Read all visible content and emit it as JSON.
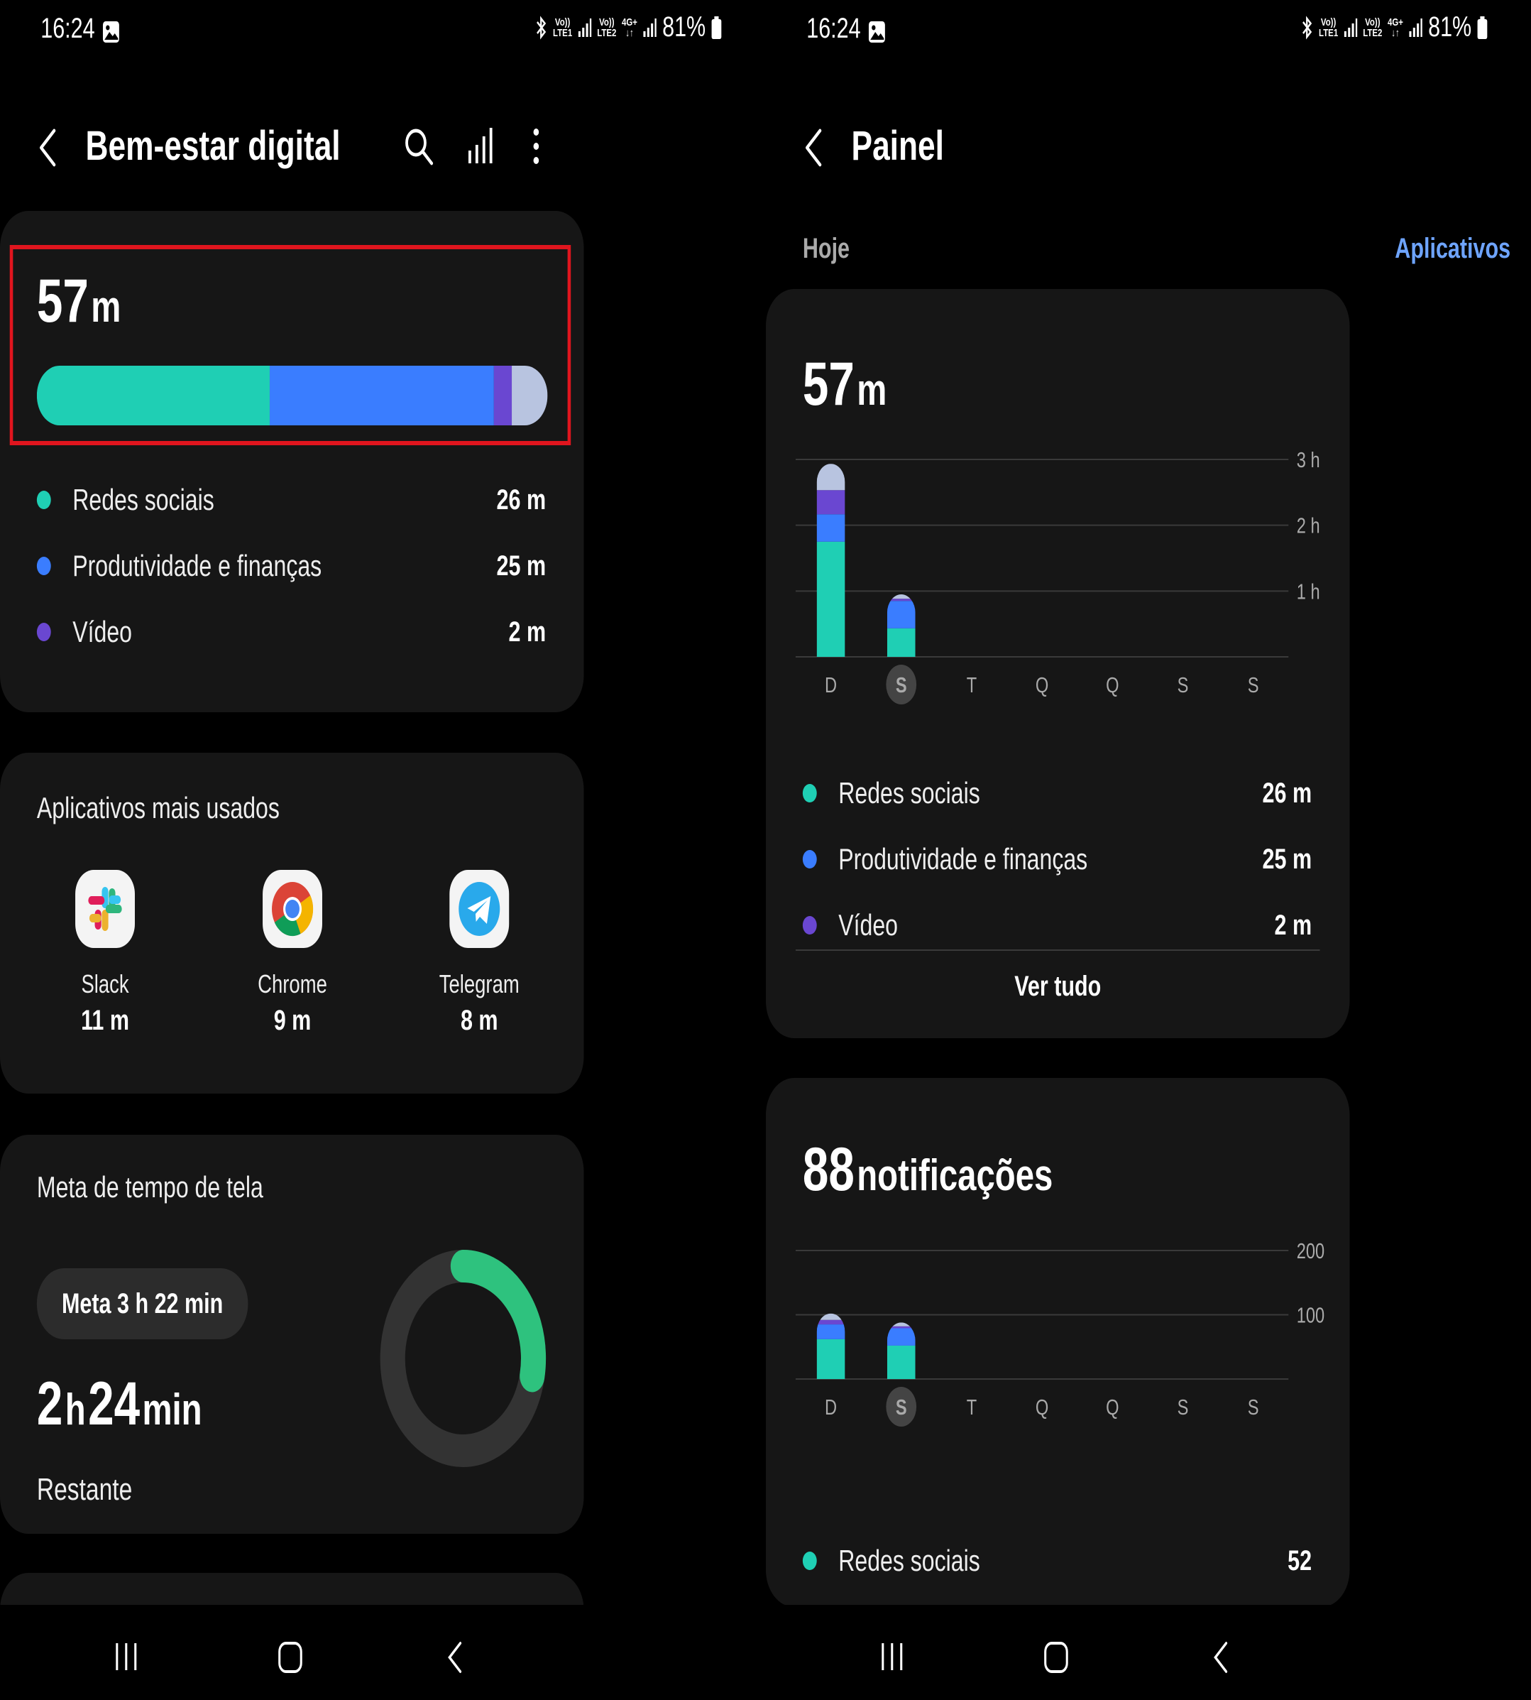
{
  "status_bar": {
    "time": "16:24",
    "battery": "81%",
    "sim1": [
      "Vo))",
      "LTE1"
    ],
    "sim2": [
      "Vo))",
      "LTE2"
    ],
    "net": [
      "4G+",
      "↓↑"
    ]
  },
  "colors": {
    "social": "#1fcfb4",
    "productivity": "#3a7dff",
    "video": "#6a47d1",
    "other": "#b8c4e0",
    "goal": "#2ec27e",
    "accent": "#6ea4ff"
  },
  "left": {
    "title": "Bem-estar digital",
    "icons": [
      "back-icon",
      "search-icon",
      "bar-chart-icon",
      "more-vert-icon"
    ],
    "usage_total": {
      "num": "57",
      "unit": "m"
    },
    "usage_bar_minutes": {
      "social": 26,
      "productivity": 25,
      "video": 2,
      "other": 4
    },
    "categories": [
      {
        "label": "Redes sociais",
        "value": "26 m"
      },
      {
        "label": "Produtividade e finanças",
        "value": "25 m"
      },
      {
        "label": "Vídeo",
        "value": "2 m"
      }
    ],
    "top_apps_title": "Aplicativos mais usados",
    "apps": [
      {
        "name": "Slack",
        "time": "11 m"
      },
      {
        "name": "Chrome",
        "time": "9 m"
      },
      {
        "name": "Telegram",
        "time": "8 m"
      }
    ],
    "goal": {
      "title": "Meta de tempo de tela",
      "badge": "Meta 3 h 22 min",
      "remaining_h": "2",
      "h_unit": "h",
      "remaining_m": "24",
      "m_unit": "min",
      "remaining_label": "Restante",
      "progress_fraction": 0.28
    }
  },
  "right": {
    "title": "Painel",
    "tab_today": "Hoje",
    "tab_apps": "Aplicativos",
    "usage_total": {
      "num": "57",
      "unit": "m"
    },
    "categories": [
      {
        "label": "Redes sociais",
        "value": "26 m"
      },
      {
        "label": "Produtividade e finanças",
        "value": "25 m"
      },
      {
        "label": "Vídeo",
        "value": "2 m"
      }
    ],
    "see_all": "Ver tudo",
    "notifications": {
      "num": "88",
      "label": "notificações"
    },
    "notif_categories": [
      {
        "label": "Redes sociais",
        "value": "52"
      }
    ]
  },
  "chart_data": [
    {
      "type": "bar",
      "title": "57 m",
      "categories": [
        "D",
        "S",
        "T",
        "Q",
        "Q",
        "S",
        "S"
      ],
      "selected_index": 1,
      "y_ticks": [
        "3 h",
        "2 h",
        "1 h"
      ],
      "ylim_minutes": [
        0,
        180
      ],
      "series": [
        {
          "name": "Redes sociais",
          "values": [
            105,
            26,
            0,
            0,
            0,
            0,
            0
          ]
        },
        {
          "name": "Produtividade e finanças",
          "values": [
            25,
            25,
            0,
            0,
            0,
            0,
            0
          ]
        },
        {
          "name": "Vídeo",
          "values": [
            22,
            2,
            0,
            0,
            0,
            0,
            0
          ]
        },
        {
          "values": [
            24,
            4,
            0,
            0,
            0,
            0,
            0
          ]
        }
      ]
    },
    {
      "type": "bar",
      "title": "88 notificações",
      "categories": [
        "D",
        "S",
        "T",
        "Q",
        "Q",
        "S",
        "S"
      ],
      "selected_index": 1,
      "y_ticks": [
        "200",
        "100"
      ],
      "ylim": [
        0,
        200
      ],
      "series": [
        {
          "name": "Redes sociais",
          "values": [
            62,
            52,
            0,
            0,
            0,
            0,
            0
          ]
        },
        {
          "values": [
            23,
            27,
            0,
            0,
            0,
            0,
            0
          ]
        },
        {
          "values": [
            7,
            3,
            0,
            0,
            0,
            0,
            0
          ]
        },
        {
          "values": [
            10,
            6,
            0,
            0,
            0,
            0,
            0
          ]
        }
      ]
    }
  ]
}
